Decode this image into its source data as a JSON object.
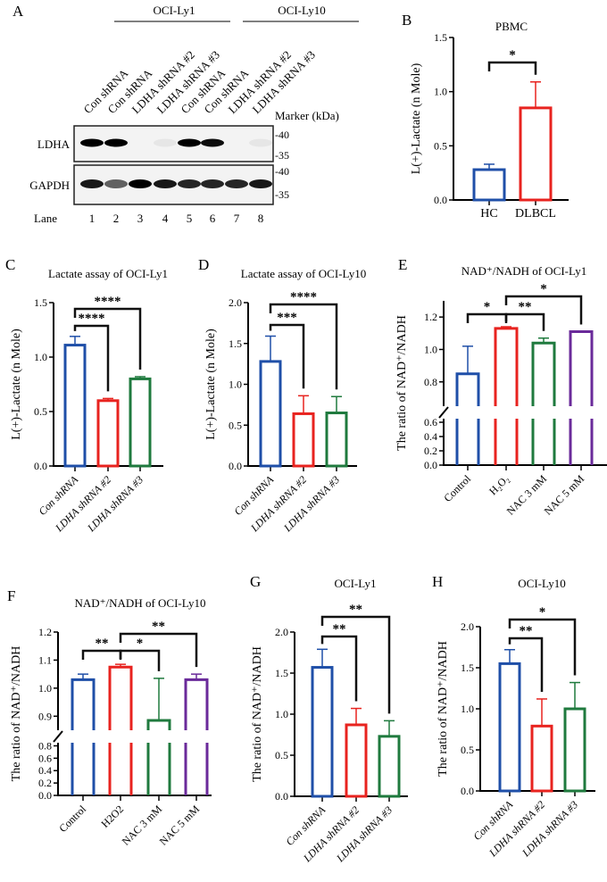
{
  "blot": {
    "panel_label": "A",
    "groups": [
      "OCI-Ly1",
      "OCI-Ly10"
    ],
    "samples": [
      "Con shRNA",
      "Con shRNA",
      "LDHA shRNA #2",
      "LDHA shRNA #3",
      "Con shRNA",
      "Con shRNA",
      "LDHA shRNA #2",
      "LDHA shRNA #3"
    ],
    "marker_label": "Marker (kDa)",
    "rows": [
      {
        "name": "LDHA",
        "markers": [
          "-40",
          "-35"
        ],
        "band_intensity": [
          1,
          1,
          0,
          0.05,
          1,
          0.95,
          0,
          0.05
        ]
      },
      {
        "name": "GAPDH",
        "markers": [
          "-40",
          "-35"
        ],
        "band_intensity": [
          0.9,
          0.6,
          1,
          0.9,
          0.85,
          0.85,
          0.85,
          0.9
        ]
      }
    ],
    "lane_label": "Lane",
    "lane_numbers": [
      "1",
      "2",
      "3",
      "4",
      "5",
      "6",
      "7",
      "8"
    ]
  },
  "chart_data": [
    {
      "panel": "B",
      "type": "bar",
      "title": "PBMC",
      "ylabel": "L(+)-Lactate (n Mole)",
      "categories": [
        "HC",
        "DLBCL"
      ],
      "values": [
        0.28,
        0.85
      ],
      "error_upper": [
        0.33,
        1.09
      ],
      "colors": [
        "#1f4fa8",
        "#e8231f"
      ],
      "yticks": [
        0.0,
        0.5,
        1.0,
        1.5
      ],
      "ylim": [
        0,
        1.5
      ],
      "italic_labels": false,
      "rotate_labels": false,
      "significance": [
        {
          "from": 0,
          "to": 1,
          "label": "*"
        }
      ]
    },
    {
      "panel": "C",
      "type": "bar",
      "title": "Lactate assay of OCI-Ly1",
      "ylabel": "L(+)-Lactate (n Mole)",
      "categories": [
        "Con shRNA",
        "LDHA shRNA #2",
        "LDHA shRNA #3"
      ],
      "values": [
        1.11,
        0.6,
        0.8
      ],
      "error_upper": [
        1.19,
        0.62,
        0.82
      ],
      "colors": [
        "#1f4fa8",
        "#e8231f",
        "#1f7a3e"
      ],
      "yticks": [
        0.0,
        0.5,
        1.0,
        1.5
      ],
      "ylim": [
        0,
        1.5
      ],
      "italic_labels": true,
      "rotate_labels": true,
      "significance": [
        {
          "from": 0,
          "to": 1,
          "label": "****"
        },
        {
          "from": 0,
          "to": 2,
          "label": "****"
        }
      ]
    },
    {
      "panel": "D",
      "type": "bar",
      "title": "Lactate assay of OCI-Ly10",
      "ylabel": "L(+)-Lactate (n Mole)",
      "categories": [
        "Con shRNA",
        "LDHA shRNA #2",
        "LDHA shRNA #3"
      ],
      "values": [
        1.28,
        0.64,
        0.65
      ],
      "error_upper": [
        1.59,
        0.86,
        0.85
      ],
      "colors": [
        "#1f4fa8",
        "#e8231f",
        "#1f7a3e"
      ],
      "yticks": [
        0.0,
        0.5,
        1.0,
        1.5,
        2.0
      ],
      "ylim": [
        0,
        2.0
      ],
      "italic_labels": true,
      "rotate_labels": true,
      "significance": [
        {
          "from": 0,
          "to": 1,
          "label": "***"
        },
        {
          "from": 0,
          "to": 2,
          "label": "****"
        }
      ]
    },
    {
      "panel": "E",
      "type": "bar",
      "title": "NAD⁺/NADH of OCI-Ly1",
      "ylabel": "The ratio of NAD⁺/NADH",
      "categories": [
        "Control",
        "H₂O₂",
        "NAC 3 mM",
        "NAC 5 mM"
      ],
      "values": [
        0.85,
        1.13,
        1.04,
        1.11
      ],
      "error_upper": [
        1.02,
        1.14,
        1.07,
        1.11
      ],
      "colors": [
        "#1f4fa8",
        "#e8231f",
        "#1f7a3e",
        "#6a2a9a"
      ],
      "yticks": [
        0.0,
        0.2,
        0.4,
        0.6,
        0.8,
        1.0,
        1.2
      ],
      "ylim": [
        0,
        1.3
      ],
      "broken_axis": [
        [
          0,
          0.65
        ],
        [
          0.65,
          1.3
        ]
      ],
      "italic_labels": false,
      "rotate_labels": true,
      "significance": [
        {
          "from": 0,
          "to": 1,
          "label": "*"
        },
        {
          "from": 1,
          "to": 2,
          "label": "**"
        },
        {
          "from": 1,
          "to": 3,
          "label": "*"
        }
      ]
    },
    {
      "panel": "F",
      "type": "bar",
      "title": "NAD⁺/NADH of OCI-Ly10",
      "ylabel": "The ratio of NAD⁺/NADH",
      "categories": [
        "Control",
        "H2O2",
        "NAC 3 mM",
        "NAC 5 mM"
      ],
      "values": [
        1.03,
        1.075,
        0.885,
        1.03
      ],
      "error_upper": [
        1.05,
        1.085,
        1.035,
        1.05
      ],
      "colors": [
        "#1f4fa8",
        "#e8231f",
        "#1f7a3e",
        "#6a2a9a"
      ],
      "yticks": [
        0.0,
        0.2,
        0.4,
        0.6,
        0.8,
        0.9,
        1.0,
        1.1,
        1.2
      ],
      "ylim": [
        0,
        1.2
      ],
      "broken_axis": [
        [
          0,
          0.85
        ],
        [
          0.85,
          1.2
        ]
      ],
      "italic_labels": false,
      "rotate_labels": true,
      "significance": [
        {
          "from": 0,
          "to": 1,
          "label": "**"
        },
        {
          "from": 1,
          "to": 2,
          "label": "*"
        },
        {
          "from": 1,
          "to": 3,
          "label": "**"
        }
      ]
    },
    {
      "panel": "G",
      "type": "bar",
      "title": "OCI-Ly1",
      "ylabel": "The ratio of NAD⁺/NADH",
      "categories": [
        "Con shRNA",
        "LDHA shRNA #2",
        "LDHA shRNA #3"
      ],
      "values": [
        1.57,
        0.87,
        0.73
      ],
      "error_upper": [
        1.79,
        1.07,
        0.92
      ],
      "colors": [
        "#1f4fa8",
        "#e8231f",
        "#1f7a3e"
      ],
      "yticks": [
        0.0,
        0.5,
        1.0,
        1.5,
        2.0
      ],
      "ylim": [
        0,
        2.0
      ],
      "italic_labels": true,
      "rotate_labels": true,
      "significance": [
        {
          "from": 0,
          "to": 1,
          "label": "**"
        },
        {
          "from": 0,
          "to": 2,
          "label": "**"
        }
      ]
    },
    {
      "panel": "H",
      "type": "bar",
      "title": "OCI-Ly10",
      "ylabel": "The ratio of NAD⁺/NADH",
      "categories": [
        "Con shRNA",
        "LDHA shRNA #2",
        "LDHA shRNA #3"
      ],
      "values": [
        1.55,
        0.79,
        1.0
      ],
      "error_upper": [
        1.72,
        1.12,
        1.32
      ],
      "colors": [
        "#1f4fa8",
        "#e8231f",
        "#1f7a3e"
      ],
      "yticks": [
        0.0,
        0.5,
        1.0,
        1.5,
        2.0
      ],
      "ylim": [
        0,
        2.0
      ],
      "italic_labels": true,
      "rotate_labels": true,
      "significance": [
        {
          "from": 0,
          "to": 1,
          "label": "**"
        },
        {
          "from": 0,
          "to": 2,
          "label": "*"
        }
      ]
    }
  ]
}
